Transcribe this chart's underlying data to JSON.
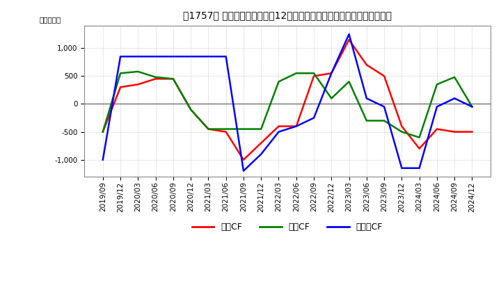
{
  "title": "　1757、 キャッシュフローの12か月移動合計の対前年同期増減額の推移",
  "title_bracket": "　1757、",
  "ylabel": "（百万円）",
  "ylim": [
    -1300,
    1400
  ],
  "yticks": [
    -1000,
    -500,
    0,
    500,
    1000
  ],
  "legend_labels": [
    "営業CF",
    "投資CF",
    "フリーCF"
  ],
  "legend_colors": [
    "#ff0000",
    "#008000",
    "#0000ff"
  ],
  "dates": [
    "2019/09",
    "2019/12",
    "2020/03",
    "2020/06",
    "2020/09",
    "2020/12",
    "2021/03",
    "2021/06",
    "2021/09",
    "2021/12",
    "2022/03",
    "2022/06",
    "2022/09",
    "2022/12",
    "2023/03",
    "2023/06",
    "2023/09",
    "2023/12",
    "2024/03",
    "2024/06",
    "2024/09",
    "2024/12"
  ],
  "operating_cf": [
    -500,
    300,
    350,
    450,
    450,
    -100,
    -450,
    -500,
    -1000,
    -700,
    -400,
    -400,
    500,
    550,
    1150,
    700,
    500,
    -400,
    -800,
    -450,
    -500,
    -500
  ],
  "investing_cf": [
    -500,
    550,
    580,
    480,
    450,
    -100,
    -450,
    -450,
    -450,
    -450,
    400,
    550,
    550,
    100,
    400,
    -300,
    -300,
    -500,
    -600,
    350,
    480,
    -50
  ],
  "free_cf": [
    -1000,
    850,
    850,
    850,
    850,
    850,
    850,
    850,
    -1200,
    -900,
    -500,
    -400,
    -250,
    550,
    1250,
    100,
    -50,
    -1150,
    -1150,
    -50,
    100,
    -50
  ],
  "background_color": "#ffffff",
  "grid_color": "#aaaaaa",
  "title_fontsize": 10,
  "axis_fontsize": 7.5,
  "legend_fontsize": 9
}
